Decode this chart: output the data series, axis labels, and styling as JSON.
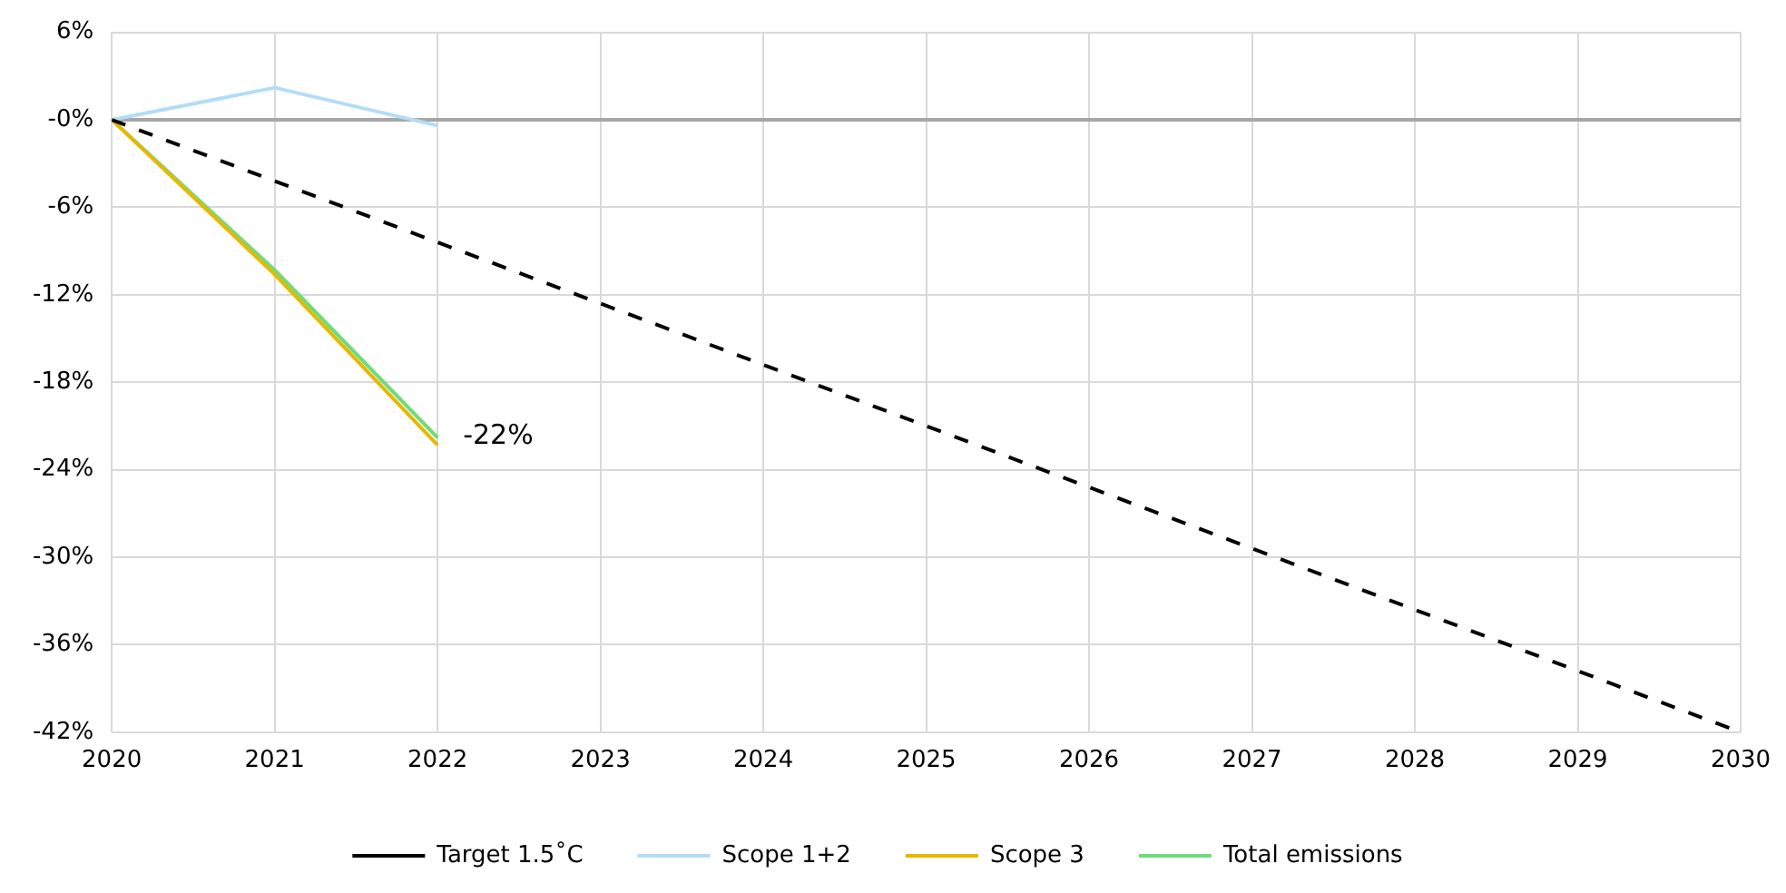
{
  "chart_data": {
    "type": "line",
    "x": [
      2020,
      2021,
      2022,
      2023,
      2024,
      2025,
      2026,
      2027,
      2028,
      2029,
      2030
    ],
    "series": [
      {
        "name": "Target 1.5˚C",
        "color": "#000000",
        "line_style": "dashed",
        "values": [
          0,
          -4.2,
          -8.4,
          -12.6,
          -16.8,
          -21,
          -25.2,
          -29.4,
          -33.6,
          -37.8,
          -42
        ]
      },
      {
        "name": "Scope 1+2",
        "color": "#b4dcf7",
        "x": [
          2020,
          2021,
          2022
        ],
        "values": [
          0,
          2.2,
          -0.4
        ]
      },
      {
        "name": "Scope 3",
        "color": "#e6b800",
        "x": [
          2020,
          2021,
          2022
        ],
        "values": [
          0,
          -10.6,
          -22.3
        ]
      },
      {
        "name": "Total emissions",
        "color": "#6fdc7a",
        "x": [
          2020,
          2021,
          2022
        ],
        "values": [
          0,
          -10.3,
          -21.8
        ]
      }
    ],
    "xlim": [
      2020,
      2030
    ],
    "xticks": [
      2020,
      2021,
      2022,
      2023,
      2024,
      2025,
      2026,
      2027,
      2028,
      2029,
      2030
    ],
    "ylim": [
      -42,
      6
    ],
    "yticks": [
      {
        "value": 6,
        "label": "6%"
      },
      {
        "value": 0,
        "label": "-0%"
      },
      {
        "value": -6,
        "label": "-6%"
      },
      {
        "value": -12,
        "label": "-12%"
      },
      {
        "value": -18,
        "label": "-18%"
      },
      {
        "value": -24,
        "label": "-24%"
      },
      {
        "value": -30,
        "label": "-30%"
      },
      {
        "value": -36,
        "label": "-36%"
      },
      {
        "value": -42,
        "label": "-42%"
      }
    ],
    "ref_lines": [
      {
        "axis": "y",
        "value": 0,
        "color": "#a6a6a6"
      }
    ],
    "annotations": [
      {
        "text": "-22%",
        "x": 2022,
        "y": -22
      }
    ],
    "grid": true,
    "legend": "bottom",
    "marker": "none"
  }
}
